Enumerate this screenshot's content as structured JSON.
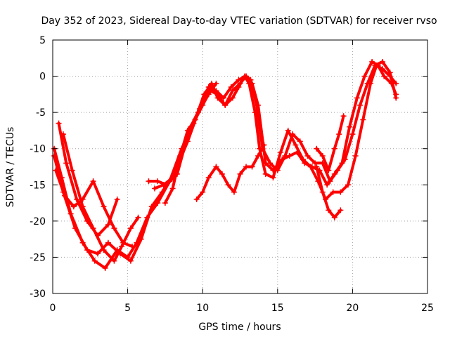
{
  "chart_data": {
    "type": "scatter",
    "title": "Day 352 of 2023, Sidereal Day-to-day VTEC variation (SDTVAR) for receiver rvso",
    "xlabel": "GPS time / hours",
    "ylabel": "SDTVAR / TECUs",
    "xlim": [
      0,
      25
    ],
    "ylim": [
      -30,
      5
    ],
    "xticks": [
      0,
      5,
      10,
      15,
      20,
      25
    ],
    "yticks": [
      -30,
      -25,
      -20,
      -15,
      -10,
      -5,
      0,
      5
    ],
    "grid": true,
    "marker": "+",
    "color": "#ff0000",
    "series": [
      {
        "name": "track-a",
        "x": [
          0.1,
          0.6,
          1.2,
          2.0,
          2.8,
          3.5,
          4.3,
          5.0,
          5.6,
          6.3,
          7.0,
          7.8,
          8.6,
          9.4,
          10.1,
          10.5
        ],
        "y": [
          -10,
          -14,
          -19,
          -23,
          -25.5,
          -26.5,
          -24,
          -25,
          -23,
          -19.5,
          -17.5,
          -14.5,
          -10,
          -6.5,
          -3,
          -1.5
        ]
      },
      {
        "name": "track-b",
        "x": [
          0.1,
          0.7,
          1.5,
          2.3,
          3.0,
          3.7,
          4.5,
          5.2,
          5.9,
          6.6,
          7.3,
          8.2,
          9.0,
          9.7,
          10.4,
          10.9
        ],
        "y": [
          -11,
          -16,
          -21,
          -24,
          -24.5,
          -23,
          -24.5,
          -25.5,
          -22.5,
          -18,
          -16,
          -13,
          -9,
          -5,
          -2.5,
          -1
        ]
      },
      {
        "name": "track-c",
        "x": [
          0.4,
          0.9,
          1.6,
          2.3,
          3.0,
          3.7,
          4.3
        ],
        "y": [
          -6.5,
          -12,
          -17,
          -20,
          -22,
          -20.5,
          -17
        ]
      },
      {
        "name": "track-d",
        "x": [
          0.7,
          1.3,
          2.0,
          2.7,
          3.4,
          4.1,
          4.6,
          5.2,
          5.7
        ],
        "y": [
          -8,
          -13,
          -18,
          -21,
          -24,
          -25.5,
          -23.5,
          -21,
          -19.5
        ]
      },
      {
        "name": "track-e",
        "x": [
          0.2,
          0.8,
          1.4,
          2.0,
          2.7,
          3.4,
          4.1,
          4.7,
          5.3
        ],
        "y": [
          -13,
          -16.5,
          -18,
          -17,
          -14.5,
          -18,
          -21,
          -23,
          -23.5
        ]
      },
      {
        "name": "track-f",
        "x": [
          6.4,
          7.0,
          7.6,
          8.3,
          8.9,
          9.5,
          10.1,
          10.6,
          11.0,
          11.5,
          12.0,
          12.4,
          12.8,
          13.1,
          13.5,
          13.8,
          14.2,
          14.7,
          15.2,
          15.7,
          16.2,
          16.7,
          17.2,
          17.7,
          18.2,
          18.7,
          19.2,
          19.7,
          20.2,
          20.7,
          21.2,
          21.6,
          22.0,
          22.5,
          22.9
        ],
        "y": [
          -14.5,
          -14.5,
          -15,
          -13.5,
          -9,
          -6,
          -2.5,
          -1,
          -3,
          -4,
          -3,
          -1.5,
          0,
          -1,
          -5,
          -10,
          -13.5,
          -14,
          -10.5,
          -7.5,
          -9.5,
          -11.5,
          -12.5,
          -14.5,
          -17,
          -16,
          -16,
          -15,
          -11,
          -6,
          -1,
          1.5,
          1,
          0,
          -1
        ]
      },
      {
        "name": "track-g",
        "x": [
          6.8,
          7.4,
          8.0,
          8.6,
          9.2,
          9.8,
          10.4,
          10.9,
          11.4,
          11.9,
          12.4,
          12.9,
          13.3,
          13.7,
          14.2,
          14.7,
          15.3,
          15.8,
          16.3,
          16.8,
          17.3,
          17.8,
          18.3,
          18.8,
          19.3,
          19.8,
          20.3,
          20.8,
          21.3,
          21.7,
          22.1,
          22.6,
          22.9
        ],
        "y": [
          -15.5,
          -15,
          -14,
          -10.5,
          -7,
          -4.5,
          -1.5,
          -2,
          -3,
          -1.5,
          -0.5,
          0,
          -1,
          -4,
          -12,
          -13,
          -11.5,
          -11,
          -10.5,
          -12,
          -12.5,
          -13,
          -15,
          -13.5,
          -12,
          -7,
          -3,
          0,
          2,
          1.5,
          0,
          -1,
          -2.5
        ]
      },
      {
        "name": "track-h",
        "x": [
          7.5,
          8.0,
          8.5,
          9.0,
          9.5,
          10.0,
          10.5,
          11.0,
          11.5,
          12.0,
          12.5,
          12.9,
          13.2,
          13.6,
          14.0,
          14.5,
          15.0,
          15.5,
          16.0,
          16.5,
          17.0,
          17.5,
          18.0,
          18.5,
          19.0,
          19.5,
          20.0,
          20.5,
          21.0,
          21.5,
          22.0,
          22.5,
          22.9
        ],
        "y": [
          -17.5,
          -15.5,
          -11,
          -7.5,
          -6,
          -4,
          -2,
          -2.5,
          -4,
          -2,
          -1,
          0,
          -0.5,
          -4,
          -10,
          -12,
          -13,
          -11,
          -8,
          -9,
          -11,
          -12,
          -12,
          -14.5,
          -13,
          -11.5,
          -8,
          -4,
          -1,
          1.5,
          2,
          0.5,
          -3
        ]
      },
      {
        "name": "track-i",
        "x": [
          9.6,
          10.0,
          10.4,
          10.9,
          11.3,
          11.7,
          12.1,
          12.5,
          12.9,
          13.3,
          13.7,
          14.1
        ],
        "y": [
          -17,
          -16,
          -14,
          -12.5,
          -13.5,
          -15,
          -16,
          -13.5,
          -12.5,
          -12.5,
          -11,
          -9.5
        ]
      },
      {
        "name": "track-j",
        "x": [
          17.6,
          18.0,
          18.4,
          18.8,
          19.2
        ],
        "y": [
          -12.5,
          -16,
          -18.5,
          -19.5,
          -18.5
        ]
      },
      {
        "name": "track-k",
        "x": [
          17.6,
          18.0,
          18.4,
          18.8,
          19.1,
          19.4
        ],
        "y": [
          -10,
          -11,
          -13,
          -10,
          -8,
          -5.5
        ]
      }
    ]
  }
}
